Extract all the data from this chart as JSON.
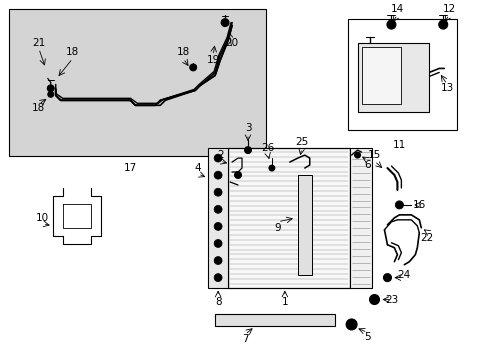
{
  "bg_color": "#ffffff",
  "line_color": "#000000",
  "gray_fill": "#d8d8d8",
  "light_fill": "#f0f0f0",
  "fig_width": 4.89,
  "fig_height": 3.6,
  "dpi": 100
}
